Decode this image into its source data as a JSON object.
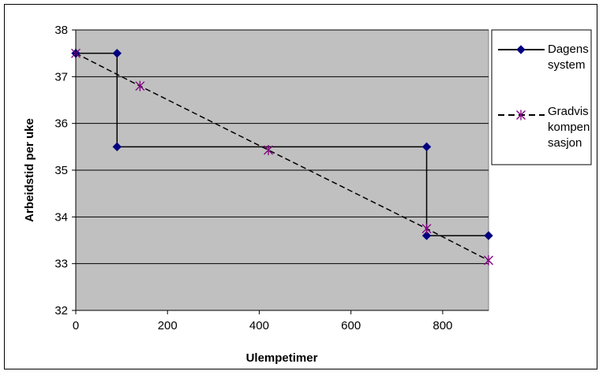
{
  "chart_data": {
    "type": "line",
    "xlabel": "Ulempetimer",
    "ylabel": "Arbeidstid per uke",
    "xlim": [
      0,
      900
    ],
    "ylim": [
      32,
      38
    ],
    "x_ticks": [
      0,
      200,
      400,
      600,
      800
    ],
    "y_ticks": [
      32,
      33,
      34,
      35,
      36,
      37,
      38
    ],
    "grid": "horizontal",
    "background": "#c0c0c0",
    "legend_position": "right",
    "series": [
      {
        "name": "Dagens system",
        "legend_lines": [
          "Dagens",
          "system"
        ],
        "color": "#000080",
        "line_color": "#000000",
        "line_style": "solid",
        "marker": "diamond",
        "points": [
          [
            0,
            37.5
          ],
          [
            90,
            37.5
          ],
          [
            90,
            35.5
          ],
          [
            765,
            35.5
          ],
          [
            765,
            33.6
          ],
          [
            900,
            33.6
          ]
        ]
      },
      {
        "name": "Gradvis kompensasjon",
        "legend_lines": [
          "Gradvis",
          "kompen",
          "sasjon"
        ],
        "color": "#800080",
        "line_color": "#000000",
        "line_style": "dashed",
        "marker": "star",
        "points": [
          [
            0,
            37.5
          ],
          [
            140,
            36.8
          ],
          [
            420,
            35.43
          ],
          [
            765,
            33.75
          ],
          [
            900,
            33.07
          ]
        ]
      }
    ]
  }
}
